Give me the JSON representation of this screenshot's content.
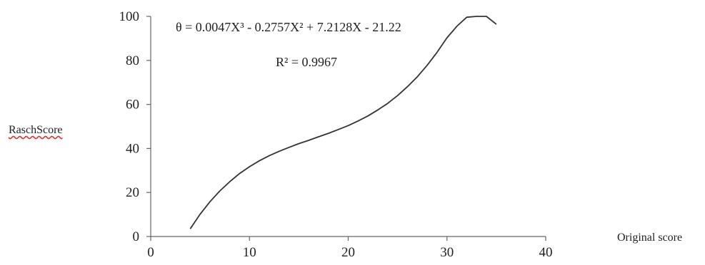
{
  "chart_data": {
    "type": "line",
    "title": "",
    "xlabel": "Original score",
    "ylabel": "RaschScore",
    "xlim": [
      0,
      40
    ],
    "ylim": [
      0,
      100
    ],
    "x_ticks": [
      "0",
      "10",
      "20",
      "30",
      "40"
    ],
    "y_ticks": [
      "0",
      "20",
      "40",
      "60",
      "80",
      "100"
    ],
    "grid": false,
    "legend": "none",
    "series": [
      {
        "x": [
          4,
          5,
          6,
          7,
          8,
          9,
          10,
          11,
          12,
          13,
          14,
          15,
          16,
          17,
          18,
          19,
          20,
          21,
          22,
          23,
          24,
          25,
          26,
          27,
          28,
          29,
          30,
          31,
          32,
          33,
          34,
          35
        ],
        "y": [
          3.5,
          10.1,
          15.8,
          20.7,
          24.9,
          28.6,
          31.7,
          34.4,
          36.7,
          38.7,
          40.5,
          42.2,
          43.7,
          45.3,
          46.9,
          48.6,
          50.4,
          52.5,
          54.8,
          57.5,
          60.5,
          64.0,
          68.1,
          72.6,
          77.8,
          83.7,
          90.3,
          95.5,
          99.6,
          103.2,
          106.3,
          96.4
        ]
      }
    ],
    "annotations": {
      "equation": "θ = 0.0047X³ - 0.2757X² + 7.2128X - 21.22",
      "r_squared": "R² = 0.9967"
    },
    "line_color": "#333333",
    "axis_color": "#666666"
  }
}
